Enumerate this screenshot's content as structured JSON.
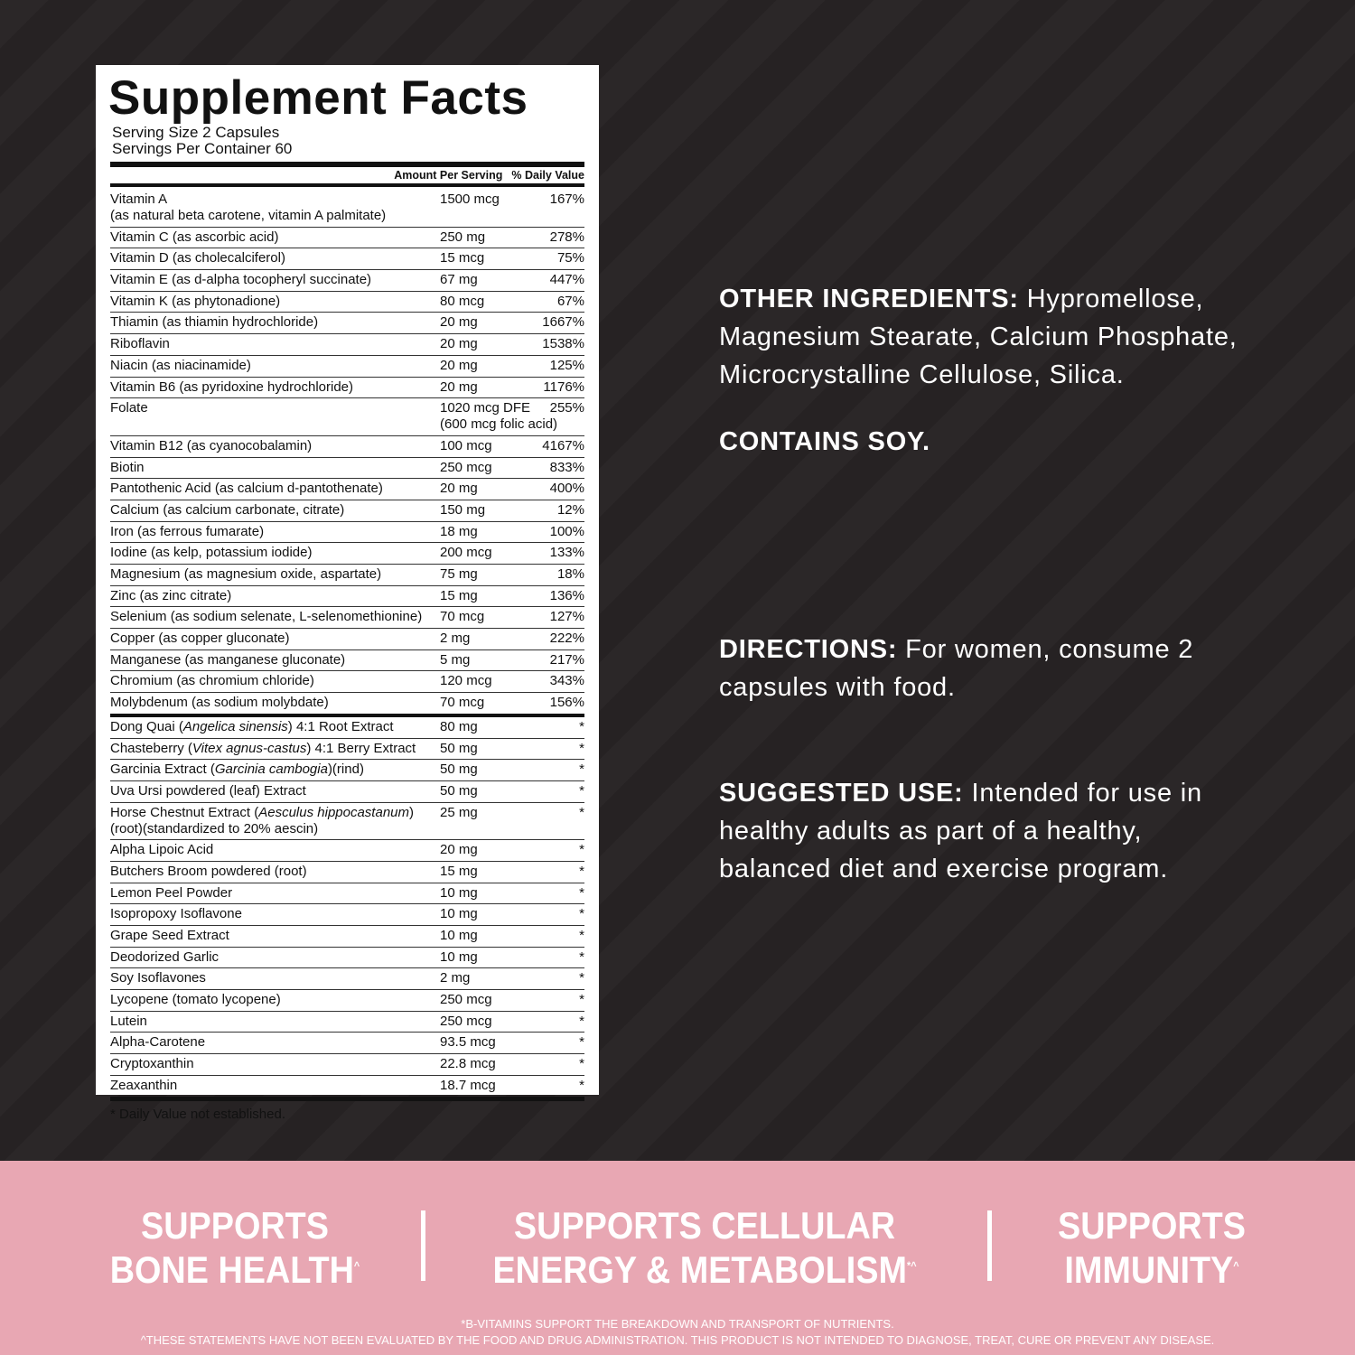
{
  "label": {
    "title": "Supplement Facts",
    "serving_size": "Serving Size 2 Capsules",
    "servings_per_container": "Servings Per Container 60",
    "col_amount": "Amount Per Serving",
    "col_dv": "% Daily Value",
    "rows": [
      {
        "name": "Vitamin A",
        "sub": "(as natural beta carotene, vitamin A palmitate)",
        "amount": "1500 mcg",
        "dv": "167%"
      },
      {
        "name": "Vitamin C (as ascorbic acid)",
        "amount": "250 mg",
        "dv": "278%"
      },
      {
        "name": "Vitamin D (as cholecalciferol)",
        "amount": "15 mcg",
        "dv": "75%"
      },
      {
        "name": "Vitamin E (as d-alpha tocopheryl succinate)",
        "amount": "67 mg",
        "dv": "447%"
      },
      {
        "name": "Vitamin K (as phytonadione)",
        "amount": "80 mcg",
        "dv": "67%"
      },
      {
        "name": "Thiamin (as thiamin hydrochloride)",
        "amount": "20 mg",
        "dv": "1667%"
      },
      {
        "name": "Riboflavin",
        "amount": "20 mg",
        "dv": "1538%"
      },
      {
        "name": "Niacin (as niacinamide)",
        "amount": "20 mg",
        "dv": "125%"
      },
      {
        "name": "Vitamin B6 (as pyridoxine hydrochloride)",
        "amount": "20 mg",
        "dv": "1176%"
      },
      {
        "name": "Folate",
        "amount": "1020 mcg DFE",
        "amount_sub": "(600 mcg folic acid)",
        "dv": "255%"
      },
      {
        "name": "Vitamin B12 (as cyanocobalamin)",
        "amount": "100 mcg",
        "dv": "4167%"
      },
      {
        "name": "Biotin",
        "amount": "250 mcg",
        "dv": "833%"
      },
      {
        "name": "Pantothenic Acid (as calcium d-pantothenate)",
        "amount": "20 mg",
        "dv": "400%"
      },
      {
        "name": "Calcium (as calcium carbonate, citrate)",
        "amount": "150 mg",
        "dv": "12%"
      },
      {
        "name": "Iron (as ferrous fumarate)",
        "amount": "18 mg",
        "dv": "100%"
      },
      {
        "name": "Iodine (as kelp, potassium iodide)",
        "amount": "200 mcg",
        "dv": "133%"
      },
      {
        "name": "Magnesium (as magnesium oxide, aspartate)",
        "amount": "75 mg",
        "dv": "18%"
      },
      {
        "name": "Zinc (as zinc citrate)",
        "amount": "15 mg",
        "dv": "136%"
      },
      {
        "name": "Selenium (as sodium selenate, L-selenomethionine)",
        "amount": "70 mcg",
        "dv": "127%"
      },
      {
        "name": "Copper (as copper gluconate)",
        "amount": "2 mg",
        "dv": "222%"
      },
      {
        "name": "Manganese (as manganese gluconate)",
        "amount": "5 mg",
        "dv": "217%"
      },
      {
        "name": "Chromium (as chromium chloride)",
        "amount": "120 mcg",
        "dv": "343%"
      },
      {
        "name": "Molybdenum (as sodium molybdate)",
        "amount": "70 mcg",
        "dv": "156%"
      },
      {
        "name": "Dong Quai (Angelica sinensis) 4:1 Root Extract",
        "italic": "Angelica sinensis",
        "amount": "80 mg",
        "dv": "*"
      },
      {
        "name": "Chasteberry (Vitex agnus-castus) 4:1 Berry Extract",
        "italic": "Vitex agnus-castus",
        "amount": "50 mg",
        "dv": "*"
      },
      {
        "name": "Garcinia Extract (Garcinia cambogia)(rind)",
        "italic": "Garcinia cambogia",
        "amount": "50 mg",
        "dv": "*"
      },
      {
        "name": "Uva Ursi powdered (leaf) Extract",
        "amount": "50 mg",
        "dv": "*"
      },
      {
        "name": "Horse Chestnut Extract (Aesculus hippocastanum)",
        "italic": "Aesculus hippocastanum",
        "sub": "(root)(standardized to 20% aescin)",
        "amount": "25 mg",
        "dv": "*"
      },
      {
        "name": "Alpha Lipoic Acid",
        "amount": "20 mg",
        "dv": "*"
      },
      {
        "name": "Butchers Broom powdered (root)",
        "amount": "15 mg",
        "dv": "*"
      },
      {
        "name": "Lemon Peel Powder",
        "amount": "10 mg",
        "dv": "*"
      },
      {
        "name": "Isopropoxy Isoflavone",
        "amount": "10 mg",
        "dv": "*"
      },
      {
        "name": "Grape Seed Extract",
        "amount": "10 mg",
        "dv": "*"
      },
      {
        "name": "Deodorized Garlic",
        "amount": "10 mg",
        "dv": "*"
      },
      {
        "name": "Soy Isoflavones",
        "amount": "2 mg",
        "dv": "*"
      },
      {
        "name": "Lycopene (tomato lycopene)",
        "amount": "250 mcg",
        "dv": "*"
      },
      {
        "name": "Lutein",
        "amount": "250 mcg",
        "dv": "*"
      },
      {
        "name": "Alpha-Carotene",
        "amount": "93.5 mcg",
        "dv": "*"
      },
      {
        "name": "Cryptoxanthin",
        "amount": "22.8 mcg",
        "dv": "*"
      },
      {
        "name": "Zeaxanthin",
        "amount": "18.7 mcg",
        "dv": "*"
      }
    ],
    "footnote": "* Daily Value not established."
  },
  "info": {
    "other_label": "OTHER INGREDIENTS:",
    "other_text": " Hypromellose, Magnesium Stearate, Calcium Phosphate, Microcrystalline Cellulose, Silica.",
    "contains": "CONTAINS SOY.",
    "directions_label": "DIRECTIONS:",
    "directions_text": " For women, consume 2 capsules with food.",
    "suggested_label": "SUGGESTED USE:",
    "suggested_text": " Intended for use in healthy adults as part of a healthy, balanced diet and exercise program."
  },
  "band": {
    "color": "#e8a7b3",
    "claims": [
      {
        "line1": "SUPPORTS",
        "line2": "BONE HEALTH",
        "mark": "^"
      },
      {
        "line1": "SUPPORTS CELLULAR",
        "line2": "ENERGY & METABOLISM",
        "mark": "*^"
      },
      {
        "line1": "SUPPORTS",
        "line2": "IMMUNITY",
        "mark": "^"
      }
    ],
    "disclaimer1": "*B-VITAMINS SUPPORT THE BREAKDOWN AND TRANSPORT OF NUTRIENTS.",
    "disclaimer2": "^THESE STATEMENTS HAVE NOT BEEN EVALUATED BY THE FOOD AND DRUG ADMINISTRATION. THIS PRODUCT IS NOT INTENDED TO DIAGNOSE, TREAT, CURE OR PREVENT ANY DISEASE."
  }
}
